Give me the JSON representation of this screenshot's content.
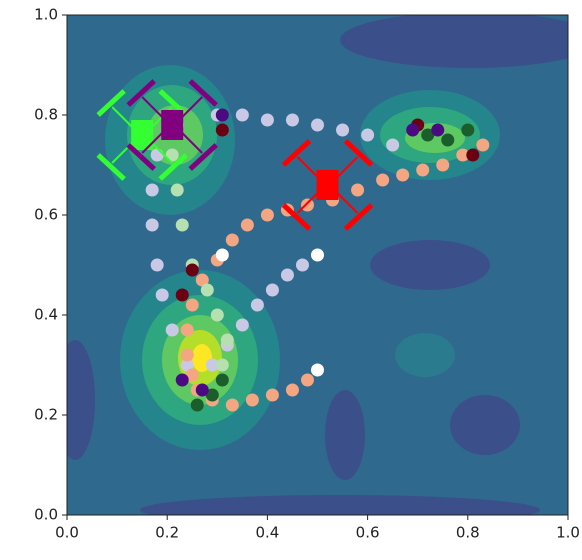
{
  "chart_data": {
    "type": "scatter",
    "xlim": [
      0,
      1
    ],
    "ylim": [
      0,
      1
    ],
    "xticks": [
      {
        "value": 0,
        "label": "0.0"
      },
      {
        "value": 0.2,
        "label": "0.2"
      },
      {
        "value": 0.4,
        "label": "0.4"
      },
      {
        "value": 0.6,
        "label": "0.6"
      },
      {
        "value": 0.8,
        "label": "0.8"
      },
      {
        "value": 1,
        "label": "1.0"
      }
    ],
    "yticks": [
      {
        "value": 0,
        "label": "0.0"
      },
      {
        "value": 0.2,
        "label": "0.2"
      },
      {
        "value": 0.4,
        "label": "0.4"
      },
      {
        "value": 0.6,
        "label": "0.6"
      },
      {
        "value": 0.8,
        "label": "0.8"
      },
      {
        "value": 1,
        "label": "1.0"
      }
    ],
    "series": [
      {
        "color": "#c9c9e6",
        "x": [
          0.22,
          0.3,
          0.35,
          0.4,
          0.45,
          0.5,
          0.55,
          0.6,
          0.65,
          0.18,
          0.17,
          0.17,
          0.18,
          0.19,
          0.21,
          0.24,
          0.47,
          0.44,
          0.41,
          0.38,
          0.35,
          0.32,
          0.29
        ],
        "y": [
          0.78,
          0.8,
          0.8,
          0.79,
          0.79,
          0.78,
          0.77,
          0.76,
          0.74,
          0.72,
          0.65,
          0.58,
          0.5,
          0.44,
          0.37,
          0.3,
          0.5,
          0.48,
          0.45,
          0.42,
          0.38,
          0.34,
          0.3
        ]
      },
      {
        "color": "#f4a582",
        "x": [
          0.83,
          0.79,
          0.75,
          0.71,
          0.67,
          0.63,
          0.58,
          0.53,
          0.48,
          0.44,
          0.4,
          0.36,
          0.33,
          0.3,
          0.27,
          0.25,
          0.24,
          0.24,
          0.25,
          0.26,
          0.29,
          0.33,
          0.37,
          0.41,
          0.45,
          0.48
        ],
        "y": [
          0.74,
          0.72,
          0.7,
          0.69,
          0.68,
          0.67,
          0.65,
          0.63,
          0.62,
          0.61,
          0.6,
          0.58,
          0.55,
          0.51,
          0.47,
          0.42,
          0.37,
          0.32,
          0.28,
          0.25,
          0.23,
          0.22,
          0.23,
          0.24,
          0.25,
          0.27
        ]
      },
      {
        "color": "#b7e0b0",
        "x": [
          0.21,
          0.22,
          0.23,
          0.25,
          0.28,
          0.3,
          0.32,
          0.31
        ],
        "y": [
          0.72,
          0.65,
          0.58,
          0.5,
          0.45,
          0.4,
          0.35,
          0.3
        ]
      },
      {
        "color": "#1b5e2c",
        "x": [
          0.26,
          0.29,
          0.31,
          0.72,
          0.76,
          0.8
        ],
        "y": [
          0.22,
          0.24,
          0.27,
          0.76,
          0.75,
          0.77
        ]
      },
      {
        "color": "#6b0012",
        "x": [
          0.25,
          0.23,
          0.81,
          0.7,
          0.31
        ],
        "y": [
          0.49,
          0.44,
          0.72,
          0.78,
          0.77
        ]
      },
      {
        "color": "#4b0a82",
        "x": [
          0.31,
          0.27,
          0.23,
          0.74,
          0.69
        ],
        "y": [
          0.8,
          0.25,
          0.27,
          0.77,
          0.77
        ]
      },
      {
        "color": "#ffffff",
        "x": [
          0.31,
          0.5,
          0.5
        ],
        "y": [
          0.52,
          0.52,
          0.29
        ]
      }
    ],
    "drones": [
      {
        "color": "#33ff33",
        "x": 0.15,
        "y": 0.76
      },
      {
        "color": "#800080",
        "x": 0.21,
        "y": 0.78
      },
      {
        "color": "#ff0000",
        "x": 0.52,
        "y": 0.66
      }
    ]
  }
}
